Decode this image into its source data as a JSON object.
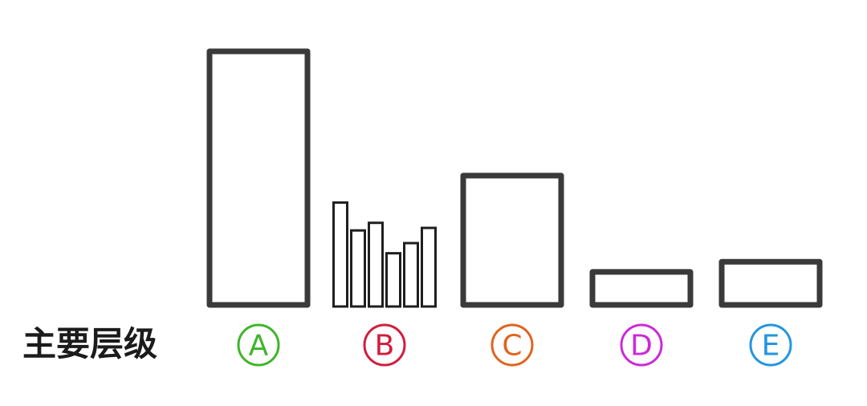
{
  "row_label": "主要层级",
  "groups": [
    {
      "letter": "A",
      "color": "#3fb52a",
      "bars": [
        1.0
      ],
      "style": "thick"
    },
    {
      "letter": "B",
      "color": "#d01e3c",
      "bars": [
        0.41,
        0.3,
        0.33,
        0.21,
        0.25,
        0.31
      ],
      "style": "thin"
    },
    {
      "letter": "C",
      "color": "#e0641f",
      "bars": [
        0.51
      ],
      "style": "thick"
    },
    {
      "letter": "D",
      "color": "#cc2ad8",
      "bars": [
        0.13
      ],
      "style": "thick"
    },
    {
      "letter": "E",
      "color": "#2396de",
      "bars": [
        0.17
      ],
      "style": "thick"
    }
  ]
}
